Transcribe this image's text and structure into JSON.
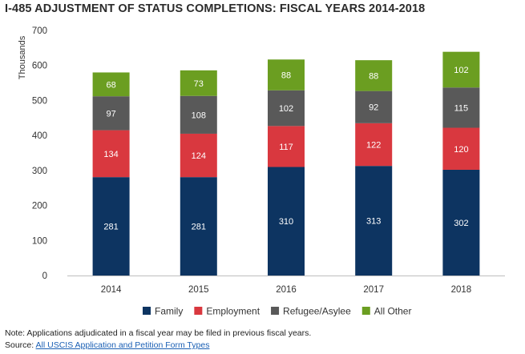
{
  "title": "I-485 ADJUSTMENT OF STATUS COMPLETIONS: FISCAL YEARS 2014-2018",
  "note": "Note: Applications adjudicated in a fiscal year may be filed in previous fiscal years.",
  "source_label": "Source:",
  "source_link": "All USCIS Application and Petition Form Types",
  "chart_data": {
    "type": "bar",
    "stacked": true,
    "title": "I-485 ADJUSTMENT OF STATUS COMPLETIONS: FISCAL YEARS 2014-2018",
    "ylabel": "Thousands",
    "xlabel": "",
    "ylim": [
      0,
      700
    ],
    "yticks": [
      0,
      100,
      200,
      300,
      400,
      500,
      600,
      700
    ],
    "categories": [
      "2014",
      "2015",
      "2016",
      "2017",
      "2018"
    ],
    "series": [
      {
        "name": "Family",
        "color": "#0d3461",
        "values": [
          281,
          281,
          310,
          313,
          302
        ]
      },
      {
        "name": "Employment",
        "color": "#d9383f",
        "values": [
          134,
          124,
          117,
          122,
          120
        ]
      },
      {
        "name": "Refugee/Asylee",
        "color": "#595959",
        "values": [
          97,
          108,
          102,
          92,
          115
        ]
      },
      {
        "name": "All Other",
        "color": "#6b9e21",
        "values": [
          68,
          73,
          88,
          88,
          102
        ]
      }
    ],
    "grid": false,
    "legend_position": "bottom"
  }
}
